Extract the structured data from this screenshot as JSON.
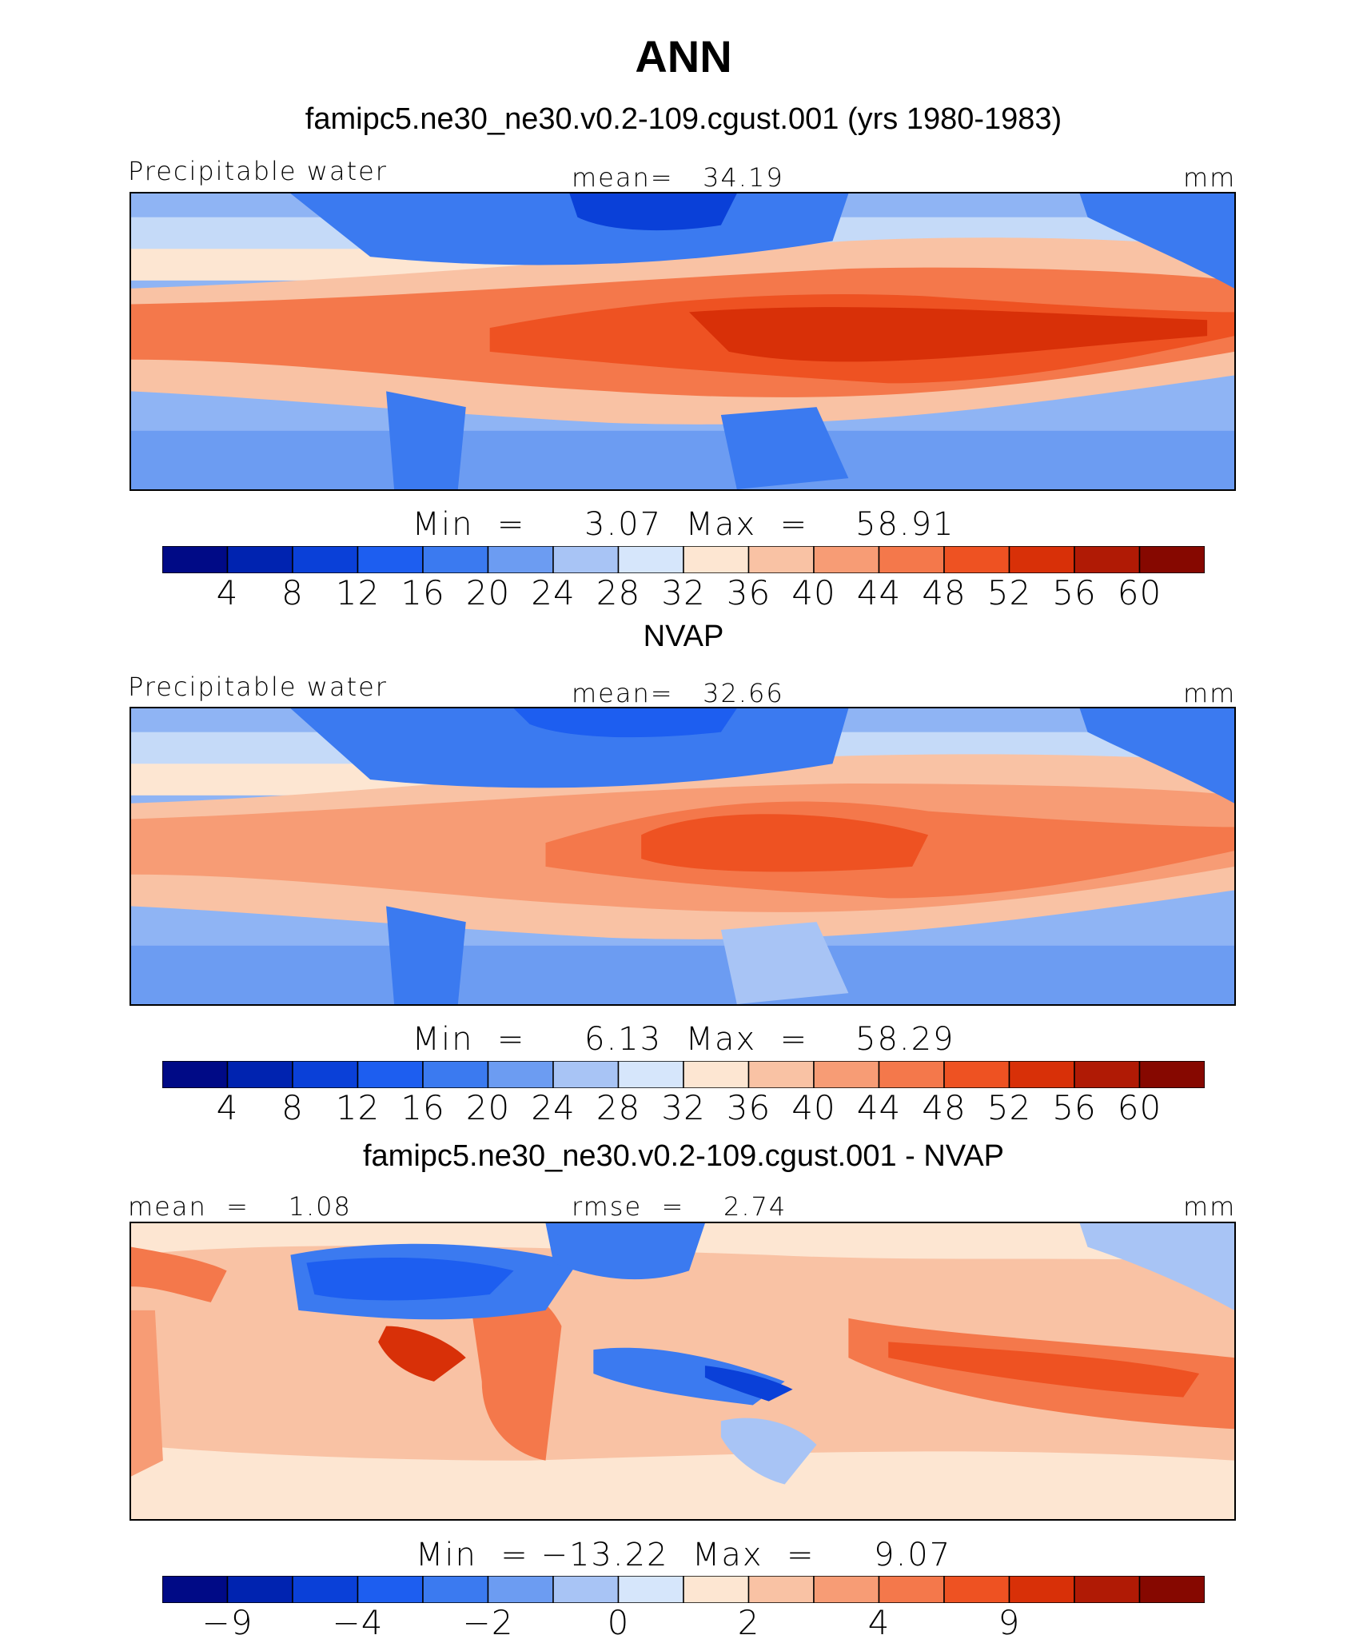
{
  "title": "ANN",
  "colors": {
    "abs_scale": [
      "#000a86",
      "#0023b0",
      "#0a40d8",
      "#1d5ef0",
      "#3b7af0",
      "#6c9cf2",
      "#a8c4f5",
      "#d6e6fb",
      "#fde6d2",
      "#f9c2a4",
      "#f79c75",
      "#f4784b",
      "#ee5222",
      "#d83008",
      "#b01a05",
      "#860800"
    ],
    "diff_scale": [
      "#000a86",
      "#0023b0",
      "#0a40d8",
      "#1d5ef0",
      "#3b7af0",
      "#6c9cf2",
      "#a8c4f5",
      "#d6e6fb",
      "#fde6d2",
      "#f9c2a4",
      "#f79c75",
      "#f4784b",
      "#ee5222",
      "#d83008",
      "#b01a05",
      "#860800"
    ]
  },
  "panels": [
    {
      "id": "model",
      "subtitle": "famipc5.ne30_ne30.v0.2-109.cgust.001 (yrs 1980-1983)",
      "left_label": "Precipitable water",
      "center_label": "mean=   34.19",
      "units": "mm",
      "minmax": "Min  =     3.07  Max  =    58.91",
      "ticks": [
        "4",
        "8",
        "12",
        "16",
        "20",
        "24",
        "28",
        "32",
        "36",
        "40",
        "44",
        "48",
        "52",
        "56",
        "60"
      ],
      "min": 3.07,
      "max": 58.91,
      "mean": 34.19
    },
    {
      "id": "obs",
      "subtitle": "NVAP",
      "left_label": "Precipitable water",
      "center_label": "mean=   32.66",
      "units": "mm",
      "minmax": "Min  =     6.13  Max  =    58.29",
      "ticks": [
        "4",
        "8",
        "12",
        "16",
        "20",
        "24",
        "28",
        "32",
        "36",
        "40",
        "44",
        "48",
        "52",
        "56",
        "60"
      ],
      "min": 6.13,
      "max": 58.29,
      "mean": 32.66
    },
    {
      "id": "diff",
      "subtitle": "famipc5.ne30_ne30.v0.2-109.cgust.001 - NVAP",
      "left_label": "mean  =    1.08",
      "center_label": "rmse  =    2.74",
      "units": "mm",
      "minmax": "Min  = −13.22  Max  =     9.07",
      "ticks": [
        "−9",
        "",
        "−4",
        "",
        "−2",
        "",
        "0",
        "",
        "2",
        "",
        "4",
        "",
        "9",
        "",
        ""
      ],
      "min": -13.22,
      "max": 9.07,
      "mean": 1.08,
      "rmse": 2.74
    }
  ]
}
